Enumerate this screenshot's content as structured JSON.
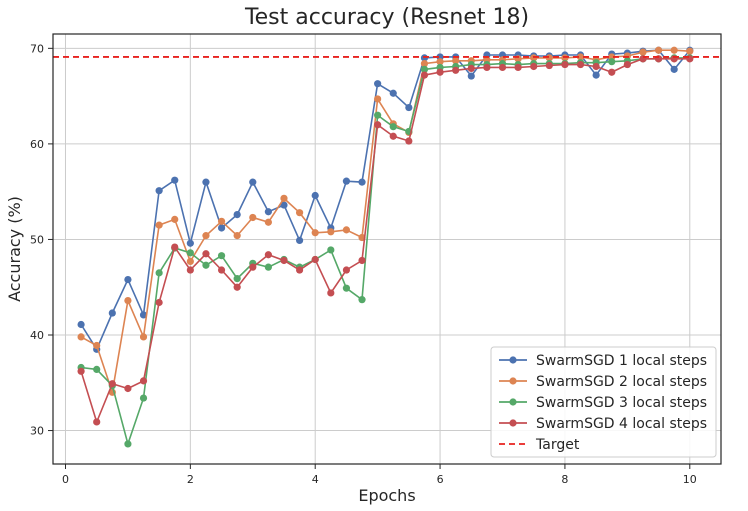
{
  "chart_data": {
    "type": "line",
    "title": "Test accuracy (Resnet 18)",
    "xlabel": "Epochs",
    "ylabel": "Accuracy (%)",
    "xlim": [
      -0.2,
      10.5
    ],
    "ylim": [
      26.5,
      71.5
    ],
    "xticks": [
      0,
      2,
      4,
      6,
      8,
      10
    ],
    "yticks": [
      30,
      40,
      50,
      60,
      70
    ],
    "grid": true,
    "legend_position": "lower right",
    "x": [
      0.25,
      0.5,
      0.75,
      1.0,
      1.25,
      1.5,
      1.75,
      2.0,
      2.25,
      2.5,
      2.75,
      3.0,
      3.25,
      3.5,
      3.75,
      4.0,
      4.25,
      4.5,
      4.75,
      5.0,
      5.25,
      5.5,
      5.75,
      6.0,
      6.25,
      6.5,
      6.75,
      7.0,
      7.25,
      7.5,
      7.75,
      8.0,
      8.25,
      8.5,
      8.75,
      9.0,
      9.25,
      9.5,
      9.75,
      10.0
    ],
    "series": [
      {
        "name": "SwarmSGD 1 local steps",
        "color": "#4c72b0",
        "style": "solid-marker",
        "values": [
          41.1,
          38.5,
          42.3,
          45.8,
          42.1,
          55.1,
          56.2,
          49.6,
          56.0,
          51.2,
          52.6,
          56.0,
          52.9,
          53.6,
          49.9,
          54.6,
          51.2,
          56.1,
          56.0,
          66.3,
          65.3,
          63.8,
          69.0,
          69.1,
          69.1,
          67.1,
          69.3,
          69.3,
          69.3,
          69.2,
          69.2,
          69.3,
          69.3,
          67.2,
          69.4,
          69.5,
          69.7,
          69.8,
          67.8,
          69.8
        ]
      },
      {
        "name": "SwarmSGD 2 local steps",
        "color": "#dd8452",
        "style": "solid-marker",
        "values": [
          39.8,
          38.9,
          34.0,
          43.6,
          39.8,
          51.5,
          52.1,
          47.7,
          50.4,
          51.9,
          50.4,
          52.3,
          51.8,
          54.3,
          52.8,
          50.7,
          50.8,
          51.0,
          50.2,
          64.7,
          62.1,
          61.2,
          68.4,
          68.6,
          68.7,
          68.7,
          68.8,
          68.8,
          68.9,
          69.0,
          69.0,
          69.0,
          69.1,
          68.8,
          69.1,
          69.2,
          69.6,
          69.8,
          69.8,
          69.7
        ]
      },
      {
        "name": "SwarmSGD 3 local steps",
        "color": "#55a868",
        "style": "solid-marker",
        "values": [
          36.6,
          36.4,
          34.7,
          28.6,
          33.4,
          46.5,
          49.1,
          48.6,
          47.3,
          48.3,
          45.9,
          47.5,
          47.1,
          47.9,
          47.1,
          47.9,
          48.9,
          44.9,
          43.7,
          63.0,
          61.8,
          61.3,
          67.8,
          68.0,
          68.1,
          68.3,
          68.3,
          68.4,
          68.3,
          68.4,
          68.4,
          68.4,
          68.5,
          68.5,
          68.6,
          68.7,
          68.9,
          68.9,
          69.0,
          69.0
        ]
      },
      {
        "name": "SwarmSGD 4 local steps",
        "color": "#c44e52",
        "style": "solid-marker",
        "values": [
          36.2,
          30.9,
          34.9,
          34.4,
          35.2,
          43.4,
          49.2,
          46.8,
          48.5,
          46.8,
          45.0,
          47.1,
          48.4,
          47.8,
          46.8,
          47.9,
          44.4,
          46.8,
          47.8,
          62.0,
          60.8,
          60.3,
          67.2,
          67.5,
          67.7,
          67.9,
          68.0,
          68.0,
          68.0,
          68.1,
          68.2,
          68.3,
          68.3,
          68.1,
          67.5,
          68.3,
          68.9,
          68.9,
          68.9,
          68.9
        ]
      }
    ],
    "target": {
      "name": "Target",
      "color": "#e8221f",
      "style": "dashed",
      "y": 69.1
    }
  }
}
